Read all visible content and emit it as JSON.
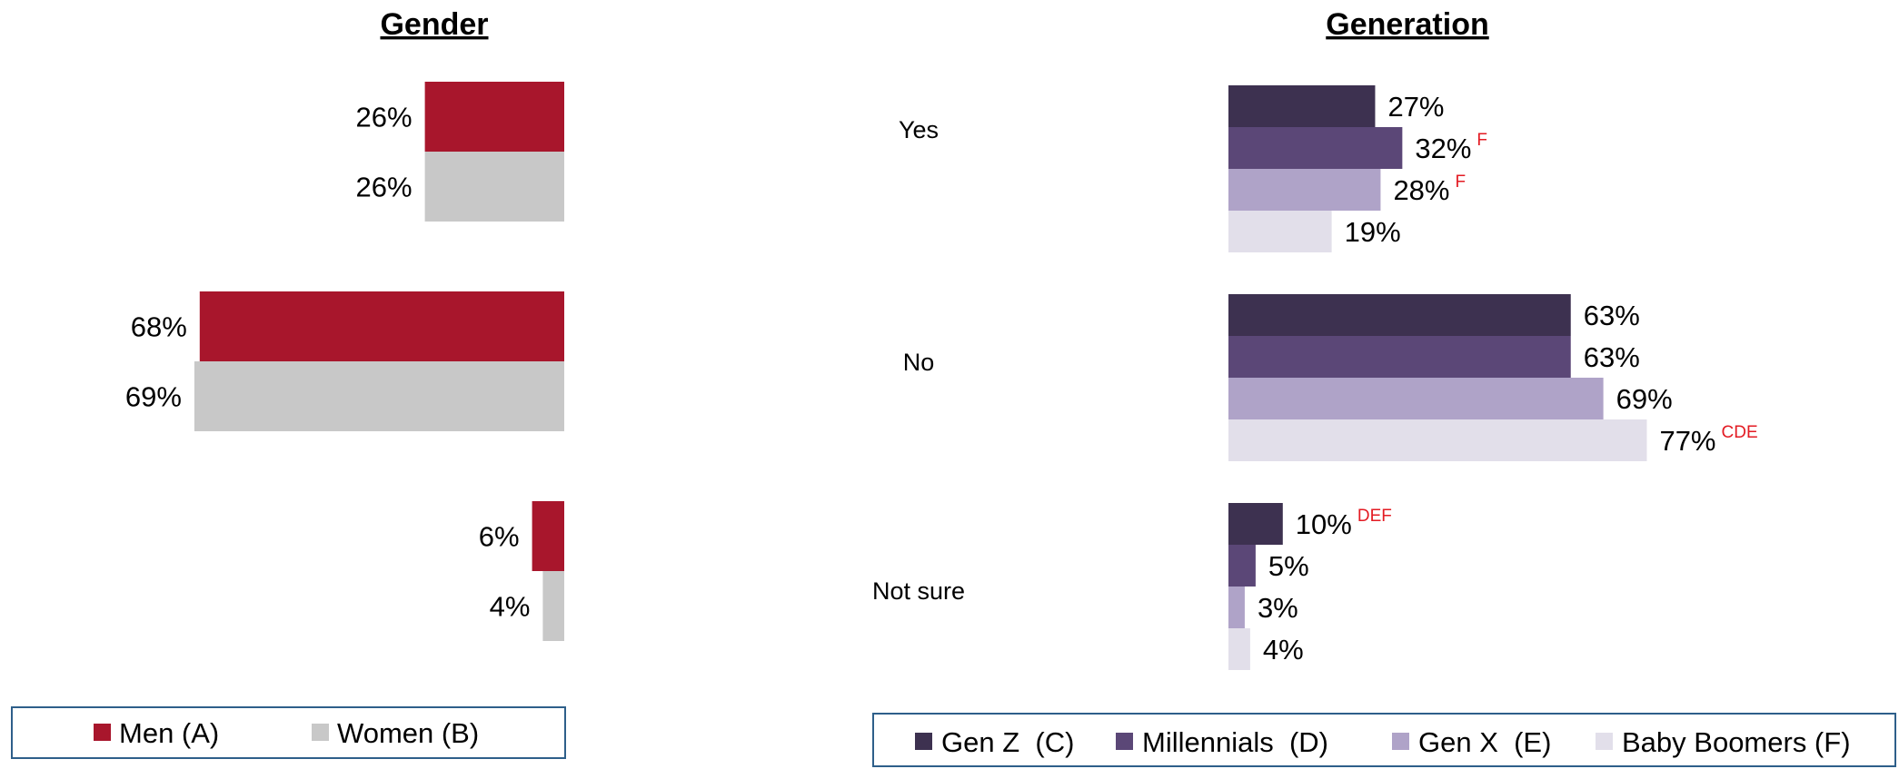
{
  "colors": {
    "men": "#A8162C",
    "women": "#C8C8C8",
    "gen_z": "#3D3150",
    "millennials": "#5B4777",
    "gen_x": "#AFA3C8",
    "boomers": "#E2DFEA",
    "sig": "#E31B23",
    "legend_border": "#2E5F8A"
  },
  "chart_data": [
    {
      "type": "bar",
      "orientation": "horizontal",
      "direction": "right-to-left",
      "title": "Gender",
      "categories": [
        "Yes",
        "No",
        "Not sure"
      ],
      "series": [
        {
          "name": "Men (A)",
          "color_key": "men",
          "values": [
            26,
            68,
            6
          ],
          "labels": [
            "26%",
            "68%",
            "6%"
          ]
        },
        {
          "name": "Women (B)",
          "color_key": "women",
          "values": [
            26,
            69,
            4
          ],
          "labels": [
            "26%",
            "69%",
            "4%"
          ]
        }
      ],
      "legend_position": "bottom"
    },
    {
      "type": "bar",
      "orientation": "horizontal",
      "direction": "left-to-right",
      "title": "Generation",
      "categories": [
        "Yes",
        "No",
        "Not sure"
      ],
      "series": [
        {
          "name": "Gen Z  (C)",
          "color_key": "gen_z",
          "values": [
            27,
            63,
            10
          ],
          "labels": [
            "27%",
            "63%",
            "10%"
          ],
          "significance": [
            "",
            "",
            "DEF"
          ]
        },
        {
          "name": "Millennials  (D)",
          "color_key": "millennials",
          "values": [
            32,
            63,
            5
          ],
          "labels": [
            "32%",
            "63%",
            "5%"
          ],
          "significance": [
            "F",
            "",
            ""
          ]
        },
        {
          "name": "Gen X  (E)",
          "color_key": "gen_x",
          "values": [
            28,
            69,
            3
          ],
          "labels": [
            "28%",
            "69%",
            "3%"
          ],
          "significance": [
            "F",
            "",
            ""
          ]
        },
        {
          "name": "Baby Boomers (F)",
          "color_key": "boomers",
          "values": [
            19,
            77,
            4
          ],
          "labels": [
            "19%",
            "77%",
            "4%"
          ],
          "significance": [
            "",
            "CDE",
            ""
          ]
        }
      ],
      "legend_position": "bottom"
    }
  ]
}
